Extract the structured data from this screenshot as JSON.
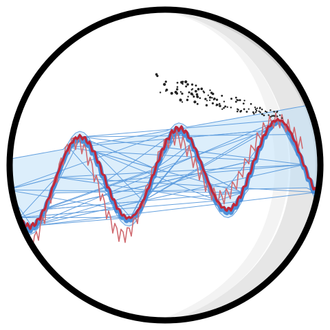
{
  "logo": {
    "sphere_icon": "sphere-icon",
    "band_icon": "convex-hull-band-icon",
    "curve_icon": "wavy-curve-icon",
    "particles_icon": "particle-cloud-icon"
  },
  "colors": {
    "sphere_fill": "#ffffff",
    "sphere_outline": "#000000",
    "shadow_dark": "#cfcfcf",
    "shadow_light": "#e6e6e6",
    "band_fill": "#bfe0f8",
    "band_lines": "#4a90d9",
    "curve_main": "#c0283a",
    "curve_inner": "#d06a70",
    "points": "#222222"
  }
}
